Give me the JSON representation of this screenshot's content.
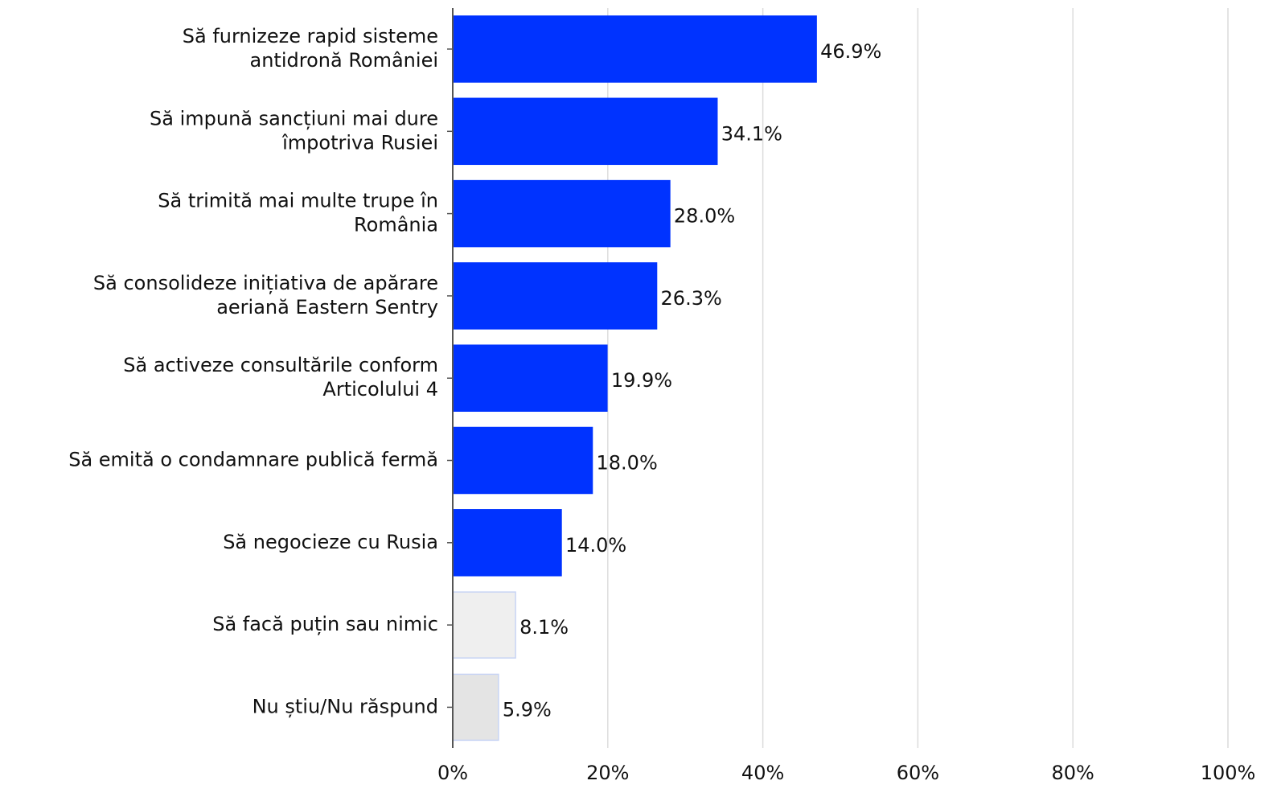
{
  "chart_data": {
    "type": "barh",
    "categories": [
      "Să furnizeze rapid sisteme\nantidronă României",
      "Să impună sancțiuni mai dure\nîmpotriva Rusiei",
      "Să trimită mai multe trupe în\nRomânia",
      "Să consolideze inițiativa de apărare\naeriană Eastern Sentry",
      "Să activeze consultările conform\nArticolului 4",
      "Să emită o condamnare publică fermă",
      "Să negocieze cu Rusia",
      "Să facă puțin sau nimic",
      "Nu știu/Nu răspund"
    ],
    "values": [
      46.9,
      34.1,
      28.0,
      26.3,
      19.9,
      18.0,
      14.0,
      8.1,
      5.9
    ],
    "value_labels": [
      "46.9%",
      "34.1%",
      "28.0%",
      "26.3%",
      "19.9%",
      "18.0%",
      "14.0%",
      "8.1%",
      "5.9%"
    ],
    "colors": [
      "#0033ff",
      "#0033ff",
      "#0033ff",
      "#0033ff",
      "#0033ff",
      "#0033ff",
      "#0033ff",
      "#efefef",
      "#e4e4e4"
    ],
    "edge_colors": [
      "#0033ff",
      "#0033ff",
      "#0033ff",
      "#0033ff",
      "#0033ff",
      "#0033ff",
      "#0033ff",
      "#c8d4f4",
      "#c8d4f4"
    ],
    "xlim": [
      0,
      100
    ],
    "xticks": [
      {
        "value": 0,
        "label": "0%"
      },
      {
        "value": 20,
        "label": "20%"
      },
      {
        "value": 40,
        "label": "40%"
      },
      {
        "value": 60,
        "label": "60%"
      },
      {
        "value": 80,
        "label": "80%"
      },
      {
        "value": 100,
        "label": "100%"
      }
    ],
    "grid": true
  }
}
